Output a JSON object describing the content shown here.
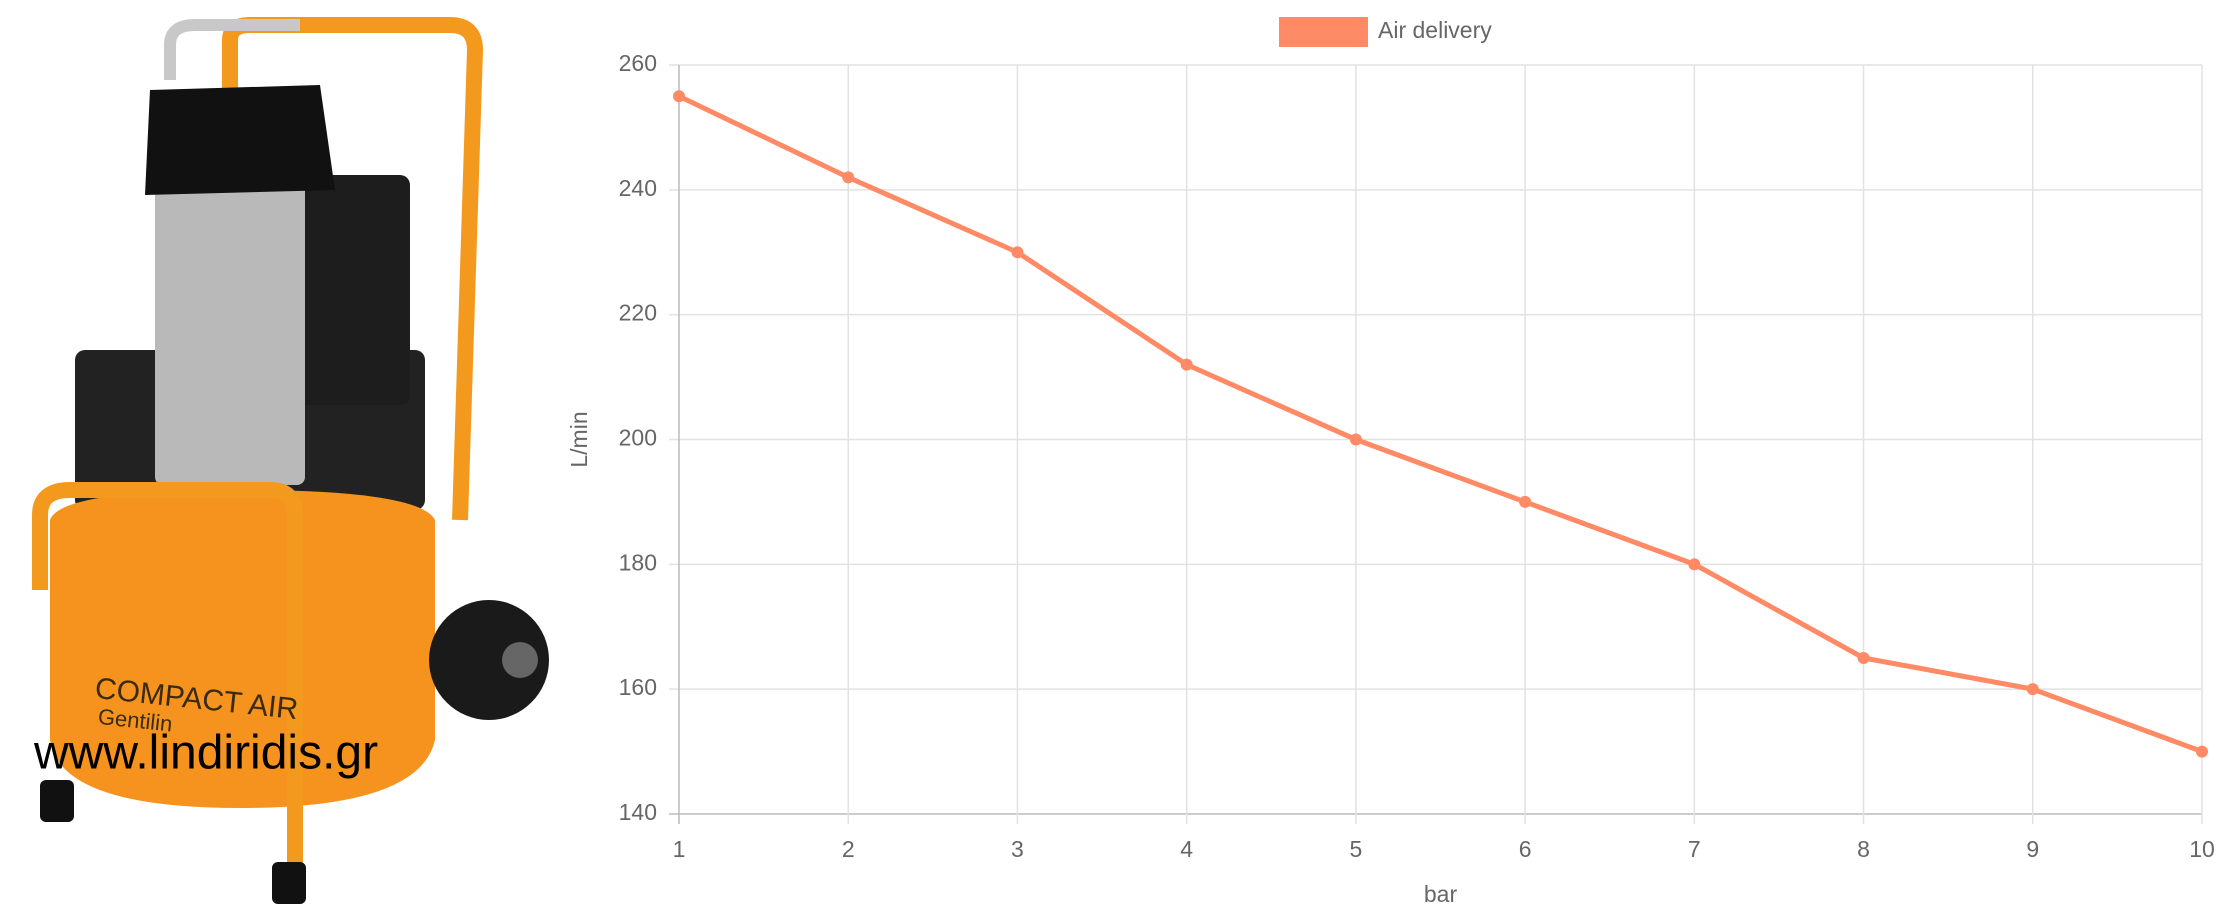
{
  "image": {
    "brand": "COMPACT AIR",
    "brand_sub": "Gentilin",
    "watermark": "www.lindiridis.gr"
  },
  "chart_data": {
    "type": "line",
    "x": [
      1,
      2,
      3,
      4,
      5,
      6,
      7,
      8,
      9,
      10
    ],
    "series": [
      {
        "name": "Air delivery",
        "color": "#ff8a65",
        "values": [
          255,
          242,
          230,
          212,
          200,
          190,
          180,
          165,
          160,
          150
        ]
      }
    ],
    "xlabel": "bar",
    "ylabel": "L/min",
    "xlim": [
      1,
      10
    ],
    "xticks": [
      1,
      2,
      3,
      4,
      5,
      6,
      7,
      8,
      9,
      10
    ],
    "ylim": [
      140,
      260
    ],
    "yticks": [
      140,
      160,
      180,
      200,
      220,
      240,
      260
    ],
    "grid": true,
    "legend": "top"
  }
}
